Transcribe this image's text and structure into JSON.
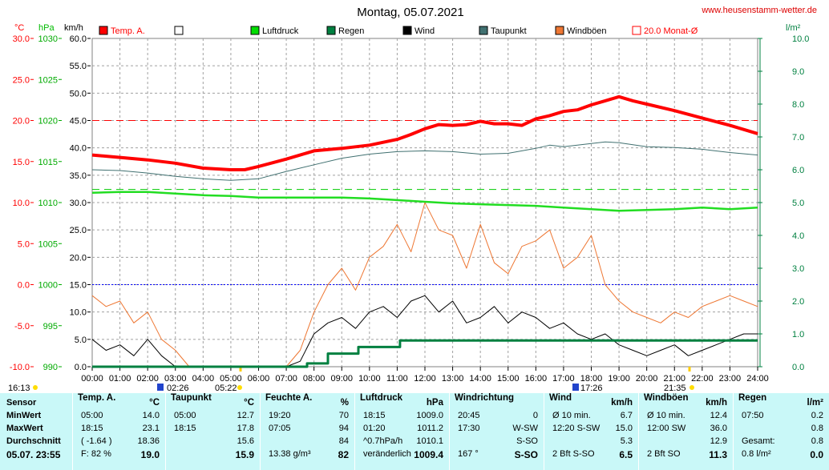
{
  "header": {
    "title": "Montag, 05.07.2021",
    "site": "www.heusenstamm-wetter.de",
    "unit_temp": "°C",
    "unit_pressure": "hPa",
    "unit_speed": "km/h",
    "unit_rain": "l/m²"
  },
  "legend": [
    {
      "label": "Temp. A.",
      "color": "#ff0000",
      "style": "filled"
    },
    {
      "label": "",
      "color": "#ffffff",
      "style": "open"
    },
    {
      "label": "Luftdruck",
      "color": "#00dd00",
      "style": "filled"
    },
    {
      "label": "Regen",
      "color": "#008040",
      "style": "filled"
    },
    {
      "label": "Wind",
      "color": "#000000",
      "style": "filled"
    },
    {
      "label": "Taupunkt",
      "color": "#407070",
      "style": "filled"
    },
    {
      "label": "Windböen",
      "color": "#ee7733",
      "style": "filled"
    },
    {
      "label": "20.0 Monat-Ø",
      "color": "#ff0000",
      "style": "open"
    }
  ],
  "axes": {
    "temp_ticks": [
      "30.0",
      "25.0",
      "20.0",
      "15.0",
      "10.0",
      "5.0",
      "0.0",
      "-5.0",
      "-10.0"
    ],
    "pressure_ticks": [
      "1030",
      "1025",
      "1020",
      "1015",
      "1010",
      "1005",
      "1000",
      "995",
      "990"
    ],
    "speed_ticks": [
      "60.0",
      "55.0",
      "50.0",
      "45.0",
      "40.0",
      "35.0",
      "30.0",
      "25.0",
      "20.0",
      "15.0",
      "10.0",
      "5.0",
      "0.0"
    ],
    "rain_ticks": [
      "10.0",
      "9.0",
      "8.0",
      "7.0",
      "6.0",
      "5.0",
      "4.0",
      "3.0",
      "2.0",
      "1.0",
      "0.0"
    ],
    "time_ticks": [
      "00:00",
      "01:00",
      "02:00",
      "03:00",
      "04:00",
      "05:00",
      "06:00",
      "07:00",
      "08:00",
      "09:00",
      "10:00",
      "11:00",
      "12:00",
      "13:00",
      "14:00",
      "15:00",
      "16:00",
      "17:00",
      "18:00",
      "19:00",
      "20:00",
      "21:00",
      "22:00",
      "23:00",
      "24:00"
    ],
    "markers": [
      "16:13",
      "02:26",
      "05:22",
      "17:26",
      "21:35"
    ]
  },
  "chart_data": {
    "type": "line",
    "title": "Montag, 05.07.2021",
    "x_unit": "hours",
    "temp_range": [
      -10,
      30
    ],
    "pressure_range": [
      990,
      1030
    ],
    "speed_range": [
      0,
      60
    ],
    "rain_range": [
      0,
      10
    ],
    "grid": true,
    "ref_lines": {
      "temp_month_avg": 20.0,
      "temp_zero": 0.0,
      "dew_ref": 11.6
    },
    "series": [
      {
        "name": "Temp. A.",
        "axis": "°C",
        "x": [
          0,
          1,
          2,
          3,
          4,
          5,
          5.5,
          6,
          7,
          7.5,
          8,
          9,
          10,
          11,
          11.5,
          12,
          12.5,
          13,
          13.5,
          14,
          14.5,
          15,
          15.5,
          16,
          16.5,
          17,
          17.5,
          18,
          18.5,
          19,
          19.5,
          20,
          21,
          22,
          23,
          24
        ],
        "values": [
          15.8,
          15.5,
          15.2,
          14.8,
          14.2,
          14.0,
          14.0,
          14.4,
          15.3,
          15.8,
          16.3,
          16.6,
          17.0,
          17.7,
          18.3,
          19.0,
          19.5,
          19.4,
          19.5,
          19.9,
          19.6,
          19.6,
          19.4,
          20.2,
          20.6,
          21.1,
          21.3,
          21.9,
          22.4,
          22.9,
          22.4,
          22.0,
          21.2,
          20.3,
          19.4,
          18.4
        ]
      },
      {
        "name": "Taupunkt",
        "axis": "°C",
        "x": [
          0,
          1,
          2,
          3,
          4,
          5,
          6,
          7,
          8,
          9,
          10,
          11,
          12,
          13,
          14,
          15,
          16,
          16.5,
          17,
          18,
          18.5,
          19,
          20,
          21,
          22,
          23,
          24
        ],
        "values": [
          14.0,
          13.9,
          13.6,
          13.2,
          12.9,
          12.7,
          12.9,
          13.8,
          14.6,
          15.4,
          15.9,
          16.2,
          16.3,
          16.2,
          15.9,
          16.0,
          16.6,
          17.0,
          16.8,
          17.2,
          17.4,
          17.3,
          16.8,
          16.7,
          16.5,
          16.1,
          15.8
        ]
      },
      {
        "name": "Luftdruck",
        "axis": "hPa",
        "x": [
          0,
          1,
          2,
          3,
          4,
          5,
          6,
          7,
          8,
          9,
          10,
          11,
          12,
          13,
          14,
          15,
          16,
          17,
          18,
          19,
          20,
          21,
          22,
          23,
          24
        ],
        "values": [
          1011.2,
          1011.3,
          1011.3,
          1011.1,
          1010.9,
          1010.8,
          1010.6,
          1010.6,
          1010.6,
          1010.6,
          1010.5,
          1010.3,
          1010.1,
          1009.9,
          1009.8,
          1009.7,
          1009.6,
          1009.4,
          1009.2,
          1009.0,
          1009.1,
          1009.2,
          1009.4,
          1009.2,
          1009.4
        ]
      },
      {
        "name": "Regen",
        "axis": "l/m²",
        "x": [
          0,
          7.5,
          7.75,
          8.0,
          8.5,
          8.6,
          9.5,
          9.6,
          11.0,
          11.1,
          24
        ],
        "values": [
          0,
          0,
          0.1,
          0.1,
          0.4,
          0.4,
          0.4,
          0.6,
          0.6,
          0.8,
          0.8
        ]
      },
      {
        "name": "Wind",
        "axis": "km/h",
        "x": [
          0,
          0.5,
          1,
          1.5,
          2,
          2.5,
          3,
          3.5,
          4,
          4.5,
          5,
          5.5,
          6,
          6.5,
          7,
          7.5,
          8,
          8.5,
          9,
          9.5,
          10,
          10.5,
          11,
          11.5,
          12,
          12.5,
          13,
          13.5,
          14,
          14.5,
          15,
          15.5,
          16,
          16.5,
          17,
          17.5,
          18,
          18.5,
          19,
          19.5,
          20,
          20.5,
          21,
          21.5,
          22,
          22.5,
          23,
          23.5,
          24
        ],
        "values": [
          5,
          3,
          4,
          2,
          5,
          2,
          0,
          0,
          0,
          0,
          0,
          0,
          0,
          0,
          0,
          1,
          6,
          8,
          9,
          7,
          10,
          11,
          9,
          12,
          13,
          10,
          12,
          8,
          9,
          11,
          8,
          10,
          9,
          7,
          8,
          6,
          5,
          6,
          4,
          3,
          2,
          3,
          4,
          2,
          3,
          4,
          5,
          6,
          6
        ]
      },
      {
        "name": "Windböen",
        "axis": "km/h",
        "x": [
          0,
          0.5,
          1,
          1.5,
          2,
          2.5,
          3,
          3.5,
          4,
          4.5,
          5,
          5.5,
          6,
          6.5,
          7,
          7.5,
          8,
          8.5,
          9,
          9.5,
          10,
          10.5,
          11,
          11.5,
          12,
          12.5,
          13,
          13.5,
          14,
          14.5,
          15,
          15.5,
          16,
          16.5,
          17,
          17.5,
          18,
          18.5,
          19,
          19.5,
          20,
          20.5,
          21,
          21.5,
          22,
          22.5,
          23,
          23.5,
          24
        ],
        "values": [
          13,
          11,
          12,
          8,
          10,
          5,
          3,
          0,
          0,
          0,
          0,
          0,
          0,
          0,
          0,
          3,
          10,
          15,
          18,
          14,
          20,
          22,
          26,
          21,
          30,
          25,
          24,
          18,
          26,
          19,
          17,
          22,
          23,
          25,
          18,
          20,
          24,
          15,
          12,
          10,
          9,
          8,
          10,
          9,
          11,
          12,
          13,
          12,
          11
        ]
      }
    ]
  },
  "table": {
    "row_labels": [
      "Sensor",
      "MinWert",
      "MaxWert",
      "Durchschnitt",
      "05.07.  23:55"
    ],
    "columns": [
      {
        "title": "Temp. A.",
        "unit": "°C",
        "rows": [
          [
            "05:00",
            "14.0"
          ],
          [
            "18:15",
            "23.1"
          ],
          [
            "( -1.64 )",
            "18.36"
          ],
          [
            "F: 82 %",
            "19.0"
          ]
        ]
      },
      {
        "title": "Taupunkt",
        "unit": "°C",
        "rows": [
          [
            "05:00",
            "12.7"
          ],
          [
            "18:15",
            "17.8"
          ],
          [
            "",
            "15.6"
          ],
          [
            "",
            "15.9"
          ]
        ]
      },
      {
        "title": "Feuchte A.",
        "unit": "%",
        "rows": [
          [
            "19:20",
            "70"
          ],
          [
            "07:05",
            "94"
          ],
          [
            "",
            "84"
          ],
          [
            "13.38 g/m³",
            "82"
          ]
        ]
      },
      {
        "title": "Luftdruck",
        "unit": "hPa",
        "rows": [
          [
            "18:15",
            "1009.0"
          ],
          [
            "01:20",
            "1011.2"
          ],
          [
            "^0.7hPa/h",
            "1010.1"
          ],
          [
            "veränderlich",
            "1009.4"
          ]
        ]
      },
      {
        "title": "Windrichtung",
        "unit": "",
        "rows": [
          [
            "20:45",
            "0"
          ],
          [
            "17:30",
            "W-SW"
          ],
          [
            "",
            "S-SO"
          ],
          [
            "167 °",
            "S-SO"
          ]
        ]
      },
      {
        "title": "Wind",
        "unit": "km/h",
        "rows": [
          [
            "Ø 10 min.",
            "6.7"
          ],
          [
            "12:20   S-SW",
            "15.0"
          ],
          [
            "",
            "5.3"
          ],
          [
            "2 Bft S-SO",
            "6.5"
          ]
        ]
      },
      {
        "title": "Windböen",
        "unit": "km/h",
        "rows": [
          [
            "Ø 10 min.",
            "12.4"
          ],
          [
            "12:00   SW",
            "36.0"
          ],
          [
            "",
            "12.9"
          ],
          [
            "2 Bft SO",
            "11.3"
          ]
        ]
      },
      {
        "title": "Regen",
        "unit": "l/m²",
        "rows": [
          [
            "07:50",
            "0.2"
          ],
          [
            "",
            "0.8"
          ],
          [
            "Gesamt:",
            "0.8"
          ],
          [
            "0.8 l/m²",
            "0.0"
          ]
        ]
      }
    ]
  }
}
